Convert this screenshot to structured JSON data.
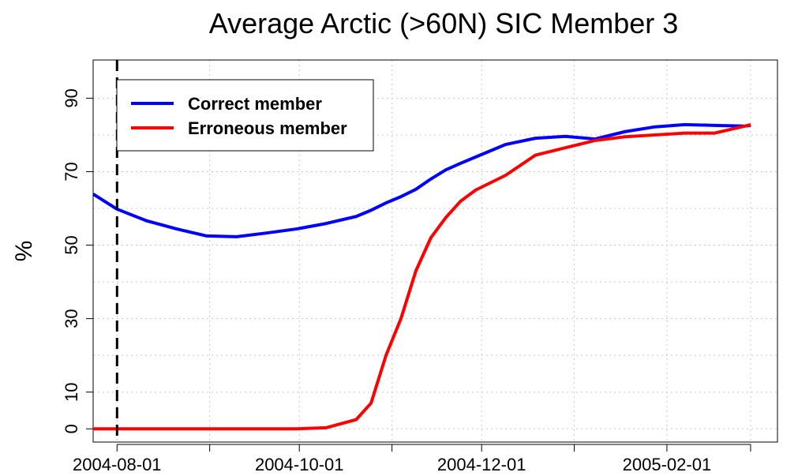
{
  "chart_data": {
    "type": "line",
    "title": "Average Arctic (>60N) SIC Member 3",
    "ylabel": "%",
    "x": [
      "2004-07-24",
      "2004-08-01",
      "2004-08-11",
      "2004-08-21",
      "2004-08-31",
      "2004-09-10",
      "2004-09-20",
      "2004-09-30",
      "2004-10-10",
      "2004-10-20",
      "2004-10-25",
      "2004-10-30",
      "2004-11-04",
      "2004-11-09",
      "2004-11-14",
      "2004-11-19",
      "2004-11-24",
      "2004-11-29",
      "2004-12-09",
      "2004-12-19",
      "2004-12-29",
      "2005-01-08",
      "2005-01-18",
      "2005-01-28",
      "2005-02-07",
      "2005-02-17",
      "2005-02-27",
      "2005-03-01"
    ],
    "series": [
      {
        "name": "Correct member",
        "color": "#0000ff",
        "values": [
          63.9,
          59.8,
          56.6,
          54.4,
          52.5,
          52.3,
          53.3,
          54.4,
          55.9,
          57.8,
          59.5,
          61.5,
          63.2,
          65.2,
          68,
          70.5,
          72.3,
          74.0,
          77.4,
          79.1,
          79.6,
          78.9,
          80.9,
          82.2,
          82.8,
          82.6,
          82.4,
          82.6
        ]
      },
      {
        "name": "Erroneous member",
        "color": "#ff0000",
        "values": [
          0,
          0,
          0,
          0,
          0,
          0,
          0,
          0,
          0.3,
          2.5,
          7,
          20,
          30,
          43,
          52,
          57.5,
          62,
          65,
          69,
          74.5,
          76.5,
          78.5,
          79.5,
          80,
          80.5,
          80.5,
          82.4,
          82.8
        ]
      }
    ],
    "xlim": [
      "2004-07-24",
      "2005-03-10"
    ],
    "xticks": [
      "2004-08-01",
      "2004-10-01",
      "2004-12-01",
      "2005-02-01"
    ],
    "xminor_ticks": [
      "2004-09-01",
      "2004-11-01",
      "2005-01-01",
      "2005-03-01"
    ],
    "ylim": [
      -3.6,
      100.4
    ],
    "yticks": [
      0,
      10,
      30,
      50,
      70,
      90
    ],
    "ygrid": [
      0,
      10,
      20,
      30,
      40,
      50,
      60,
      70,
      80,
      90
    ],
    "grid": true,
    "vline": "2004-08-01",
    "legend": "top-left"
  }
}
